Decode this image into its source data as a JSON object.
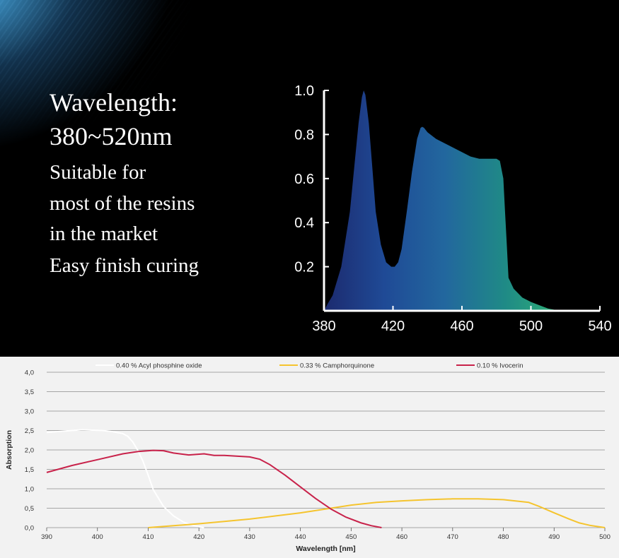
{
  "text": {
    "title_lines": [
      "Wavelength:",
      "380~520nm"
    ],
    "description_lines": [
      "Suitable for",
      "most of the resins",
      "in the market",
      "Easy finish curing"
    ]
  },
  "chart_data": [
    {
      "type": "area",
      "x": [
        380,
        382,
        385,
        390,
        395,
        400,
        402,
        403,
        404,
        406,
        408,
        410,
        413,
        416,
        419,
        421,
        423,
        425,
        428,
        431,
        434,
        436,
        437,
        438,
        440,
        445,
        450,
        455,
        460,
        465,
        470,
        475,
        480,
        482,
        484,
        485,
        486,
        487,
        490,
        495,
        500,
        505,
        510,
        515,
        520
      ],
      "y": [
        0.0,
        0.03,
        0.07,
        0.2,
        0.45,
        0.85,
        0.97,
        1.0,
        0.98,
        0.85,
        0.65,
        0.45,
        0.3,
        0.22,
        0.2,
        0.2,
        0.22,
        0.28,
        0.45,
        0.63,
        0.78,
        0.83,
        0.835,
        0.83,
        0.81,
        0.78,
        0.76,
        0.74,
        0.72,
        0.7,
        0.69,
        0.69,
        0.69,
        0.68,
        0.6,
        0.45,
        0.3,
        0.15,
        0.1,
        0.06,
        0.04,
        0.025,
        0.01,
        0.003,
        0.0
      ],
      "xticks": [
        380,
        420,
        460,
        500,
        540
      ],
      "yticks": [
        "0.2",
        "0.4",
        "0.6",
        "0.8",
        "1.0"
      ],
      "xlim": [
        380,
        540
      ],
      "ylim": [
        0,
        1.0
      ],
      "grid": false,
      "colors": [
        "#1c2a6e",
        "#1f4a96",
        "#22679e",
        "#1f8a86",
        "#2fb374"
      ]
    },
    {
      "type": "line",
      "xlabel": "Wavelength  [nm]",
      "ylabel": "Absorption",
      "xlim": [
        390,
        500
      ],
      "ylim": [
        0,
        4.0
      ],
      "xticks": [
        390,
        400,
        410,
        420,
        430,
        440,
        450,
        460,
        470,
        480,
        490,
        500
      ],
      "yticks": [
        "0,0",
        "0,5",
        "1,0",
        "1,5",
        "2,0",
        "2,5",
        "3,0",
        "3,5",
        "4,0"
      ],
      "grid": true,
      "legend_position": "top",
      "series": [
        {
          "name": "0.40 % Acyl phosphine oxide",
          "color": "#ffffff",
          "x": [
            390,
            392,
            395,
            397,
            399,
            401,
            403,
            405,
            406,
            407,
            408,
            409,
            410,
            411,
            413,
            415,
            417,
            419,
            421
          ],
          "y": [
            2.45,
            2.47,
            2.5,
            2.52,
            2.51,
            2.5,
            2.47,
            2.42,
            2.35,
            2.2,
            1.98,
            1.7,
            1.35,
            0.98,
            0.55,
            0.3,
            0.14,
            0.05,
            0.0
          ]
        },
        {
          "name": "0.33 % Camphorquinone",
          "color": "#f5c42e",
          "x": [
            410,
            415,
            420,
            425,
            430,
            435,
            440,
            445,
            450,
            455,
            460,
            465,
            470,
            475,
            480,
            485,
            487,
            490,
            493,
            495,
            497,
            500
          ],
          "y": [
            0.0,
            0.05,
            0.1,
            0.16,
            0.22,
            0.3,
            0.38,
            0.48,
            0.58,
            0.65,
            0.69,
            0.72,
            0.74,
            0.74,
            0.72,
            0.65,
            0.55,
            0.38,
            0.22,
            0.12,
            0.06,
            0.0
          ]
        },
        {
          "name": "0.10 % Ivocerin",
          "color": "#c8224a",
          "x": [
            390,
            395,
            400,
            405,
            408,
            411,
            413,
            415,
            418,
            421,
            423,
            425,
            430,
            432,
            434,
            437,
            440,
            443,
            446,
            449,
            452,
            454,
            456
          ],
          "y": [
            1.42,
            1.6,
            1.75,
            1.9,
            1.96,
            1.99,
            1.98,
            1.92,
            1.87,
            1.9,
            1.86,
            1.86,
            1.82,
            1.76,
            1.62,
            1.35,
            1.05,
            0.75,
            0.48,
            0.27,
            0.12,
            0.05,
            0.0
          ]
        }
      ]
    }
  ]
}
